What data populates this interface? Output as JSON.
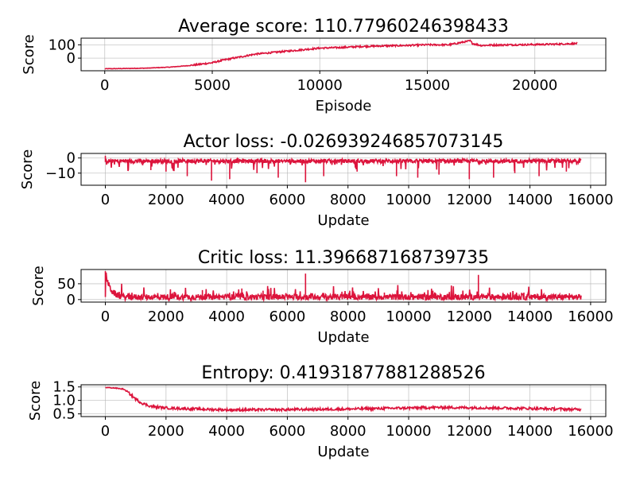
{
  "colors": {
    "series": "#dc143c"
  },
  "chart_data": [
    {
      "type": "line",
      "title": "Average score: 110.77960246398433",
      "xlabel": "Episode",
      "ylabel": "Score",
      "xlim": [
        -1100,
        23300
      ],
      "ylim": [
        -95,
        150
      ],
      "xticks": [
        0,
        5000,
        10000,
        15000,
        20000
      ],
      "yticks": [
        0,
        100
      ],
      "grid": true,
      "series": [
        {
          "x": [
            0,
            1000,
            2000,
            3000,
            4000,
            5000,
            5500,
            6000,
            7000,
            8000,
            9000,
            10000,
            11000,
            12000,
            13000,
            14000,
            15000,
            16000,
            17000,
            17100,
            17500,
            18000,
            19000,
            20000,
            21000,
            22000
          ],
          "y": [
            -80,
            -78,
            -75,
            -68,
            -55,
            -35,
            -15,
            0,
            30,
            45,
            60,
            75,
            80,
            88,
            92,
            95,
            100,
            100,
            130,
            110,
            95,
            98,
            100,
            102,
            105,
            110
          ]
        }
      ]
    },
    {
      "type": "line",
      "title": "Actor loss: -0.026939246857073145",
      "xlabel": "Update",
      "ylabel": "Score",
      "xlim": [
        -800,
        16500
      ],
      "ylim": [
        -18,
        3
      ],
      "xticks": [
        0,
        2000,
        4000,
        6000,
        8000,
        10000,
        12000,
        14000,
        16000
      ],
      "yticks": [
        -10,
        0
      ],
      "grid": true,
      "baseline": -2,
      "spikes": [
        [
          0,
          1.5
        ],
        [
          1500,
          -8
        ],
        [
          2000,
          -9
        ],
        [
          2700,
          -12
        ],
        [
          3500,
          -15
        ],
        [
          4100,
          -14
        ],
        [
          5000,
          -10
        ],
        [
          5700,
          -13
        ],
        [
          6600,
          -16
        ],
        [
          7200,
          -12
        ],
        [
          8300,
          -9
        ],
        [
          9600,
          -12
        ],
        [
          10300,
          -13
        ],
        [
          11000,
          -11
        ],
        [
          12000,
          -14
        ],
        [
          12800,
          -13
        ],
        [
          13500,
          -10
        ],
        [
          14300,
          -12
        ],
        [
          15200,
          -9
        ]
      ],
      "series": []
    },
    {
      "type": "line",
      "title": "Critic loss: 11.396687168739735",
      "xlabel": "Update",
      "ylabel": "Score",
      "xlim": [
        -800,
        16500
      ],
      "ylim": [
        -8,
        95
      ],
      "xticks": [
        0,
        2000,
        4000,
        6000,
        8000,
        10000,
        12000,
        14000,
        16000
      ],
      "yticks": [
        0,
        50
      ],
      "grid": true,
      "baseline": 8,
      "spikes": [
        [
          0,
          90
        ],
        [
          3200,
          30
        ],
        [
          4500,
          35
        ],
        [
          5200,
          28
        ],
        [
          6600,
          82
        ],
        [
          7800,
          25
        ],
        [
          9200,
          22
        ],
        [
          10800,
          28
        ],
        [
          11400,
          27
        ],
        [
          12300,
          78
        ],
        [
          13800,
          22
        ],
        [
          15300,
          20
        ]
      ],
      "series": []
    },
    {
      "type": "line",
      "title": "Entropy: 0.41931877881288526",
      "xlabel": "Update",
      "ylabel": "Score",
      "xlim": [
        -800,
        16500
      ],
      "ylim": [
        0.4,
        1.58
      ],
      "xticks": [
        0,
        2000,
        4000,
        6000,
        8000,
        10000,
        12000,
        14000,
        16000
      ],
      "yticks": [
        0.5,
        1.0,
        1.5
      ],
      "grid": true,
      "series": [
        {
          "x": [
            0,
            300,
            600,
            800,
            1000,
            1200,
            1500,
            2000,
            3000,
            4000,
            5000,
            6000,
            7000,
            8000,
            9000,
            10000,
            11000,
            12000,
            13000,
            14000,
            15000,
            15700
          ],
          "y": [
            1.48,
            1.46,
            1.42,
            1.25,
            1.05,
            0.9,
            0.78,
            0.72,
            0.68,
            0.65,
            0.65,
            0.66,
            0.67,
            0.68,
            0.7,
            0.72,
            0.74,
            0.73,
            0.72,
            0.7,
            0.68,
            0.66
          ]
        }
      ]
    }
  ]
}
